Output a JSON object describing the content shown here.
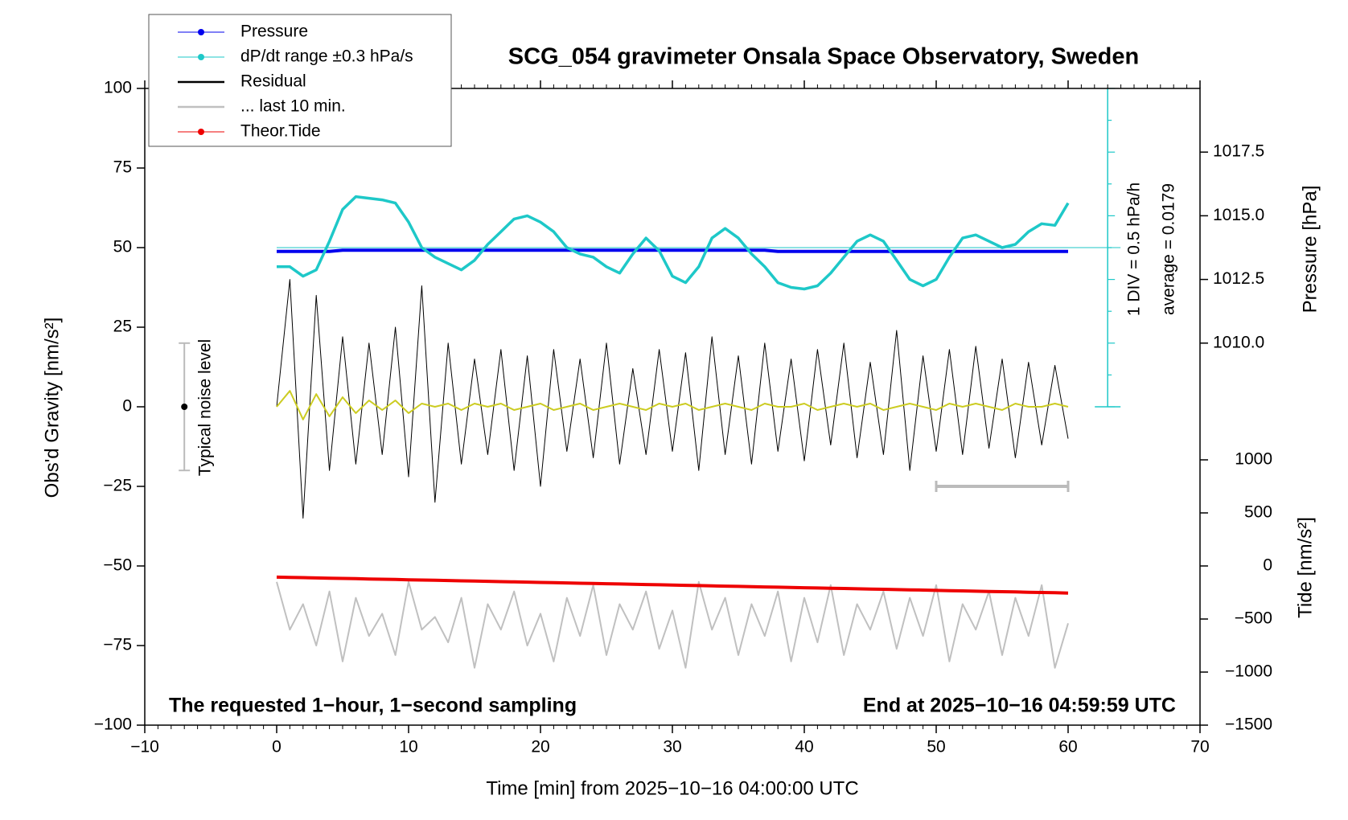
{
  "chart_data": {
    "type": "line",
    "title": "SCG_054 gravimeter Onsala Space Observatory, Sweden",
    "x_label": "Time [min] from 2025−10−16 04:00:00 UTC",
    "y_label": "Obs'd Gravity [nm/s²]",
    "y2_label": "Pressure [hPa]",
    "y3_label": "Tide [nm/s²]",
    "annotations": [
      "The requested 1−hour, 1−second sampling",
      "End at 2025−10−16 04:59:59 UTC",
      "1 DIV = 0.5 hPa/h",
      "average = 0.0179"
    ],
    "noise_level": {
      "label": "Typical noise level",
      "x": -7,
      "y": 0,
      "low": -20,
      "high": 20
    },
    "scale_bar": {
      "x": [
        50,
        60
      ],
      "y": -25
    },
    "xlim": [
      -10,
      70
    ],
    "xticks": [
      {
        "value": -10,
        "label": "−10"
      },
      0,
      10,
      20,
      30,
      40,
      50,
      60,
      70
    ],
    "ylim": [
      -100,
      100
    ],
    "yticks": [
      {
        "value": -100,
        "label": "−100"
      },
      {
        "value": -75,
        "label": "−75"
      },
      {
        "value": -50,
        "label": "−50"
      },
      {
        "value": -25,
        "label": "−25"
      },
      0,
      25,
      50,
      75,
      100
    ],
    "y2lim": [
      995,
      1020
    ],
    "y2ticks": [
      {
        "value": 1010,
        "label": "1010.0"
      },
      1012.5,
      {
        "value": 1015,
        "label": "1015.0"
      },
      1017.5
    ],
    "y3lim": [
      -1500,
      4500
    ],
    "y3ticks": [
      {
        "value": -1500,
        "label": "−1500"
      },
      {
        "value": -1000,
        "label": "−1000"
      },
      {
        "value": -500,
        "label": "−500"
      },
      0,
      500,
      1000
    ],
    "x": [
      0,
      1,
      2,
      3,
      4,
      5,
      6,
      7,
      8,
      9,
      10,
      11,
      12,
      13,
      14,
      15,
      16,
      17,
      18,
      19,
      20,
      21,
      22,
      23,
      24,
      25,
      26,
      27,
      28,
      29,
      30,
      31,
      32,
      33,
      34,
      35,
      36,
      37,
      38,
      39,
      40,
      41,
      42,
      43,
      44,
      45,
      46,
      47,
      48,
      49,
      50,
      51,
      52,
      53,
      54,
      55,
      56,
      57,
      58,
      59,
      60
    ],
    "series": [
      {
        "name": "Pressure",
        "color": "#0000ee",
        "axis": "y2",
        "marker": true,
        "width": 4,
        "values": [
          1013.6,
          1013.6,
          1013.6,
          1013.6,
          1013.6,
          1013.65,
          1013.65,
          1013.65,
          1013.65,
          1013.65,
          1013.65,
          1013.65,
          1013.65,
          1013.65,
          1013.65,
          1013.65,
          1013.65,
          1013.65,
          1013.65,
          1013.65,
          1013.65,
          1013.65,
          1013.65,
          1013.65,
          1013.65,
          1013.65,
          1013.65,
          1013.65,
          1013.65,
          1013.65,
          1013.65,
          1013.65,
          1013.65,
          1013.65,
          1013.65,
          1013.65,
          1013.65,
          1013.65,
          1013.6,
          1013.6,
          1013.6,
          1013.6,
          1013.6,
          1013.6,
          1013.6,
          1013.6,
          1013.6,
          1013.6,
          1013.6,
          1013.6,
          1013.6,
          1013.6,
          1013.6,
          1013.6,
          1013.6,
          1013.6,
          1013.6,
          1013.6,
          1013.6,
          1013.6,
          1013.6
        ]
      },
      {
        "name": "dP/dt range ±0.3 hPa/s",
        "color": "#1ec8c8",
        "marker": true,
        "width": 3.5,
        "values": [
          44,
          44,
          41,
          43,
          52,
          62,
          66,
          65.5,
          65,
          64,
          58,
          50,
          47,
          45,
          43,
          46,
          51,
          55,
          59,
          60,
          58,
          55,
          50,
          48,
          47,
          44,
          42,
          48,
          53,
          49,
          41,
          39,
          44,
          53,
          56,
          53,
          48,
          44,
          39,
          37.5,
          37,
          38,
          42,
          47,
          52,
          54,
          52,
          46,
          40,
          38,
          40,
          47,
          53,
          54,
          52,
          50,
          51,
          55,
          57.5,
          57,
          64
        ]
      },
      {
        "name": "Residual",
        "color": "#000000",
        "width": 1,
        "values": [
          0,
          40,
          -35,
          35,
          -20,
          22,
          -18,
          20,
          -15,
          25,
          -22,
          38,
          -30,
          20,
          -18,
          15,
          -15,
          18,
          -20,
          16,
          -25,
          18,
          -14,
          15,
          -16,
          20,
          -18,
          12,
          -15,
          18,
          -14,
          17,
          -20,
          22,
          -15,
          16,
          -18,
          20,
          -14,
          15,
          -17,
          18,
          -12,
          20,
          -16,
          14,
          -15,
          24,
          -20,
          16,
          -14,
          18,
          -15,
          19,
          -13,
          15,
          -16,
          14,
          -12,
          13,
          -10
        ]
      },
      {
        "name": "... last 10 min.",
        "color": "#c0c0c0",
        "width": 2,
        "values": [
          -55,
          -70,
          -62,
          -75,
          -58,
          -80,
          -60,
          -72,
          -65,
          -78,
          -55,
          -70,
          -66,
          -74,
          -60,
          -82,
          -62,
          -70,
          -58,
          -75,
          -65,
          -80,
          -60,
          -72,
          -56,
          -78,
          -62,
          -70,
          -58,
          -76,
          -64,
          -82,
          -55,
          -70,
          -60,
          -78,
          -62,
          -72,
          -58,
          -80,
          -60,
          -74,
          -56,
          -78,
          -62,
          -70,
          -58,
          -76,
          -60,
          -72,
          -56,
          -80,
          -62,
          -70,
          -58,
          -78,
          -60,
          -72,
          -56,
          -82,
          -68
        ]
      },
      {
        "name": "Theor.Tide",
        "color": "#ee0000",
        "axis": "y3",
        "marker": true,
        "width": 4,
        "values": [
          -105,
          -107.5,
          -110,
          -112.5,
          -115,
          -117.5,
          -120,
          -122.5,
          -125,
          -127.5,
          -130,
          -132.5,
          -135,
          -137.5,
          -140,
          -142.5,
          -145,
          -147.5,
          -150,
          -152.5,
          -155,
          -157.5,
          -160,
          -162.5,
          -165,
          -167.5,
          -170,
          -172.5,
          -175,
          -177.5,
          -180,
          -182.5,
          -185,
          -187.5,
          -190,
          -192.5,
          -195,
          -197.5,
          -200,
          -202.5,
          -205,
          -207.5,
          -210,
          -212.5,
          -215,
          -217.5,
          -220,
          -222.5,
          -225,
          -227.5,
          -230,
          -232.5,
          -235,
          -237.5,
          -240,
          -242.5,
          -245,
          -247.5,
          -250,
          -252.5,
          -255
        ]
      },
      {
        "color": "#cccc22",
        "width": 2,
        "values": [
          0,
          5,
          -4,
          4,
          -3,
          3,
          -2,
          2,
          -1,
          2,
          -2,
          1,
          0,
          1,
          -1,
          1,
          0,
          1,
          -1,
          0,
          1,
          -1,
          0,
          1,
          -1,
          0,
          1,
          0,
          -1,
          1,
          0,
          1,
          -1,
          0,
          1,
          0,
          -1,
          1,
          0,
          0,
          1,
          -1,
          0,
          1,
          0,
          1,
          -1,
          0,
          1,
          0,
          -1,
          1,
          0,
          1,
          0,
          -1,
          1,
          0,
          0,
          1,
          0
        ]
      }
    ]
  }
}
